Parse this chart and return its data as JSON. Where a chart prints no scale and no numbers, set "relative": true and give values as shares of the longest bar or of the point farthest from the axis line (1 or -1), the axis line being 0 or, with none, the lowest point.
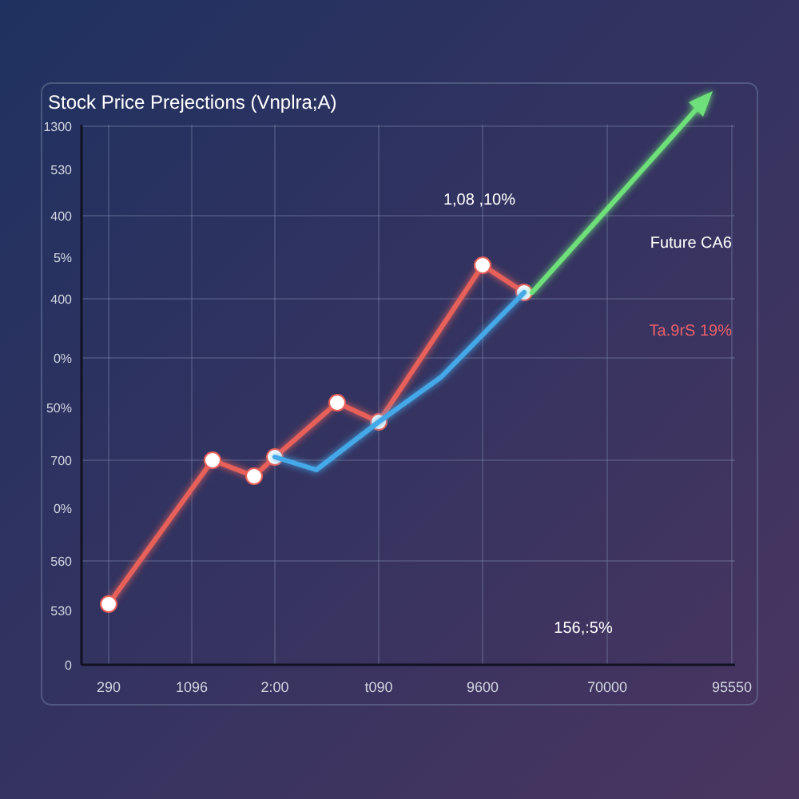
{
  "chart_data": {
    "type": "line",
    "title": "Stock Price Prejections (Vnplra;A)",
    "relative": true,
    "categories": [
      "290",
      null,
      null,
      null,
      "1096",
      null,
      null,
      null,
      "2:00",
      null,
      null,
      null,
      null,
      "t090",
      null,
      null,
      null,
      null,
      "9600",
      null,
      null,
      null,
      null,
      null,
      "70000",
      null,
      null,
      null,
      null,
      null,
      "95550"
    ],
    "grid": true,
    "line_style": "solid",
    "series": [
      {
        "color": "#e8605a",
        "marker": "circle",
        "values": [
          0.152,
          null,
          null,
          null,
          null,
          0.512,
          null,
          0.472,
          0.52,
          null,
          null,
          0.656,
          null,
          0.608,
          null,
          null,
          null,
          null,
          1,
          null,
          0.932,
          null,
          null,
          null,
          null,
          null,
          null,
          null,
          null,
          null,
          null
        ]
      },
      {
        "color": "#45a8e8",
        "marker": "none",
        "values": [
          null,
          null,
          null,
          null,
          null,
          null,
          null,
          null,
          0.52,
          null,
          0.488,
          null,
          null,
          0.608,
          null,
          null,
          0.72,
          null,
          null,
          null,
          0.932,
          null,
          null,
          null,
          null,
          null,
          null,
          null,
          null,
          null,
          null
        ]
      }
    ],
    "annotations": [
      "1,08 ,10%",
      "Future CA6",
      "Ta.9rS 19%",
      "156,:5%",
      "1300",
      "530",
      "400",
      "5%",
      "400",
      "0%",
      "50%",
      "700",
      "0%",
      "560",
      "530",
      "0"
    ]
  }
}
